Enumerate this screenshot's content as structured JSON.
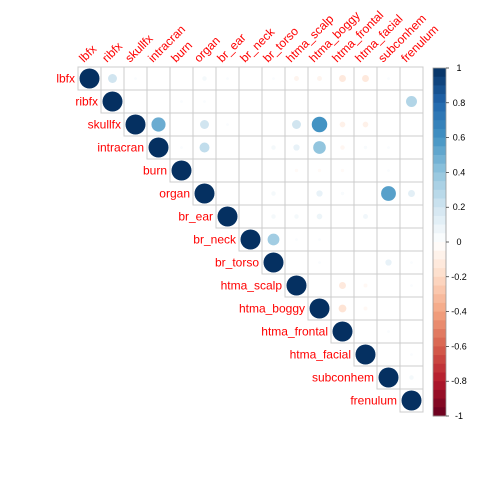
{
  "chart_data": {
    "type": "heatmap",
    "variables": [
      "lbfx",
      "ribfx",
      "skullfx",
      "intracran",
      "burn",
      "organ",
      "br_ear",
      "br_neck",
      "br_torso",
      "htma_scalp",
      "htma_boggy",
      "htma_frontal",
      "htma_facial",
      "subconhem",
      "frenulum"
    ],
    "correlations": [
      {
        "row": "lbfx",
        "col": "ribfx",
        "value": 0.2
      },
      {
        "row": "lbfx",
        "col": "skullfx",
        "value": 0.02
      },
      {
        "row": "lbfx",
        "col": "organ",
        "value": 0.05
      },
      {
        "row": "lbfx",
        "col": "br_ear",
        "value": 0.02
      },
      {
        "row": "lbfx",
        "col": "br_torso",
        "value": 0.02
      },
      {
        "row": "lbfx",
        "col": "htma_scalp",
        "value": -0.06
      },
      {
        "row": "lbfx",
        "col": "htma_boggy",
        "value": -0.06
      },
      {
        "row": "lbfx",
        "col": "htma_frontal",
        "value": -0.12
      },
      {
        "row": "lbfx",
        "col": "htma_facial",
        "value": -0.12
      },
      {
        "row": "lbfx",
        "col": "subconhem",
        "value": 0.02
      },
      {
        "row": "ribfx",
        "col": "frenulum",
        "value": 0.3
      },
      {
        "row": "ribfx",
        "col": "burn",
        "value": 0.02
      },
      {
        "row": "ribfx",
        "col": "organ",
        "value": 0.02
      },
      {
        "row": "skullfx",
        "col": "intracran",
        "value": 0.5
      },
      {
        "row": "skullfx",
        "col": "organ",
        "value": 0.2
      },
      {
        "row": "skullfx",
        "col": "br_ear",
        "value": 0.02
      },
      {
        "row": "skullfx",
        "col": "htma_scalp",
        "value": 0.2
      },
      {
        "row": "skullfx",
        "col": "htma_boggy",
        "value": 0.6
      },
      {
        "row": "skullfx",
        "col": "htma_frontal",
        "value": -0.08
      },
      {
        "row": "skullfx",
        "col": "htma_facial",
        "value": -0.08
      },
      {
        "row": "intracran",
        "col": "burn",
        "value": 0.02
      },
      {
        "row": "intracran",
        "col": "organ",
        "value": 0.25
      },
      {
        "row": "intracran",
        "col": "br_torso",
        "value": 0.05
      },
      {
        "row": "intracran",
        "col": "htma_scalp",
        "value": 0.1
      },
      {
        "row": "intracran",
        "col": "htma_boggy",
        "value": 0.4
      },
      {
        "row": "intracran",
        "col": "htma_frontal",
        "value": -0.05
      },
      {
        "row": "intracran",
        "col": "htma_facial",
        "value": 0.03
      },
      {
        "row": "intracran",
        "col": "subconhem",
        "value": 0.02
      },
      {
        "row": "burn",
        "col": "htma_scalp",
        "value": -0.03
      },
      {
        "row": "burn",
        "col": "htma_boggy",
        "value": -0.03
      },
      {
        "row": "burn",
        "col": "htma_frontal",
        "value": -0.03
      },
      {
        "row": "burn",
        "col": "subconhem",
        "value": 0.02
      },
      {
        "row": "organ",
        "col": "br_torso",
        "value": 0.05
      },
      {
        "row": "organ",
        "col": "htma_boggy",
        "value": 0.1
      },
      {
        "row": "organ",
        "col": "htma_frontal",
        "value": 0.03
      },
      {
        "row": "organ",
        "col": "subconhem",
        "value": 0.55
      },
      {
        "row": "organ",
        "col": "frenulum",
        "value": 0.12
      },
      {
        "row": "br_ear",
        "col": "br_torso",
        "value": 0.05
      },
      {
        "row": "br_ear",
        "col": "htma_scalp",
        "value": 0.05
      },
      {
        "row": "br_ear",
        "col": "htma_boggy",
        "value": 0.08
      },
      {
        "row": "br_ear",
        "col": "htma_facial",
        "value": 0.06
      },
      {
        "row": "br_neck",
        "col": "br_torso",
        "value": 0.35
      },
      {
        "row": "br_neck",
        "col": "htma_scalp",
        "value": 0.02
      },
      {
        "row": "br_neck",
        "col": "htma_boggy",
        "value": 0.02
      },
      {
        "row": "br_torso",
        "col": "htma_boggy",
        "value": 0.02
      },
      {
        "row": "br_torso",
        "col": "subconhem",
        "value": 0.1
      },
      {
        "row": "br_torso",
        "col": "frenulum",
        "value": 0.02
      },
      {
        "row": "htma_scalp",
        "col": "htma_frontal",
        "value": -0.12
      },
      {
        "row": "htma_scalp",
        "col": "htma_facial",
        "value": -0.04
      },
      {
        "row": "htma_scalp",
        "col": "frenulum",
        "value": 0.02
      },
      {
        "row": "htma_boggy",
        "col": "htma_frontal",
        "value": -0.15
      },
      {
        "row": "htma_boggy",
        "col": "htma_facial",
        "value": -0.04
      },
      {
        "row": "htma_frontal",
        "col": "subconhem",
        "value": 0.02
      },
      {
        "row": "htma_facial",
        "col": "frenulum",
        "value": 0.02
      },
      {
        "row": "subconhem",
        "col": "frenulum",
        "value": 0.05
      }
    ],
    "diagonal_value": 1,
    "colorbar": {
      "ticks": [
        "1",
        "0.8",
        "0.6",
        "0.4",
        "0.2",
        "0",
        "-0.2",
        "-0.4",
        "-0.6",
        "-0.8",
        "-1"
      ],
      "placement": "right"
    },
    "triangle": "upper",
    "grid": true
  },
  "colors": {
    "negative_end": "#67001f",
    "positive_end": "#053061",
    "mid": "#ffffff",
    "label": "#ff0000",
    "grid": "#cccccc",
    "border": "#999999"
  }
}
